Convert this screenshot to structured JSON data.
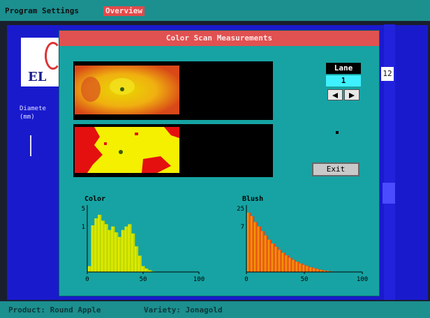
{
  "menu": {
    "items": [
      {
        "label": "Program Settings",
        "selected": false
      },
      {
        "label": "Overview",
        "selected": true
      }
    ]
  },
  "background": {
    "logo_text": "EL",
    "left_label_line1": "Diamete",
    "left_label_line2": "(mm)",
    "right_value": "12"
  },
  "dialog": {
    "title": "Color Scan Measurements",
    "lane": {
      "label": "Lane",
      "value": "1"
    },
    "exit_label": "Exit"
  },
  "histograms": {
    "color": {
      "title": "Color",
      "y_top_label": "5",
      "y_mid_label": "1",
      "x_ticks": [
        "0",
        "50",
        "100"
      ]
    },
    "blush": {
      "title": "Blush",
      "y_top_label": "25",
      "y_mid_label": "7",
      "x_ticks": [
        "0",
        "50",
        "100"
      ]
    }
  },
  "chart_data": [
    {
      "type": "bar",
      "title": "Color",
      "x": [
        2,
        5,
        8,
        11,
        14,
        17,
        20,
        23,
        26,
        29,
        32,
        35,
        38,
        41,
        44,
        47,
        50,
        53,
        56,
        59
      ],
      "values": [
        0.5,
        4,
        4.6,
        4.9,
        4.4,
        4.1,
        3.6,
        3.9,
        3.4,
        3.0,
        3.6,
        3.9,
        4.1,
        3.3,
        2.2,
        1.4,
        0.5,
        0.3,
        0.15,
        0.05
      ],
      "xlim": [
        0,
        100
      ],
      "ylim": [
        0,
        5.5
      ],
      "color": "#d8e600"
    },
    {
      "type": "bar",
      "title": "Blush",
      "x": [
        2,
        5,
        8,
        11,
        14,
        17,
        20,
        23,
        26,
        29,
        32,
        35,
        38,
        41,
        44,
        47,
        50,
        53,
        56,
        59,
        62,
        65,
        68,
        71,
        74
      ],
      "values": [
        25,
        23.5,
        21,
        19.2,
        17.2,
        15.4,
        13.6,
        12,
        10.6,
        9.3,
        8.1,
        7,
        6,
        5.1,
        4.3,
        3.6,
        3,
        2.5,
        2,
        1.6,
        1.2,
        0.9,
        0.6,
        0.4,
        0.2
      ],
      "xlim": [
        0,
        100
      ],
      "ylim": [
        0,
        27
      ],
      "color": "#f08a10"
    }
  ],
  "status": {
    "product": "Product: Round Apple",
    "variety": "Variety: Jonagold"
  },
  "colors": {
    "menu_bar": "#1c8f8f",
    "dialog": "#17a3a3",
    "title_bar": "#e05151",
    "desktop": "#1a1acd"
  }
}
